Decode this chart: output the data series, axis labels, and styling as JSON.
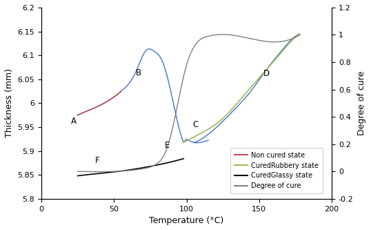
{
  "title": "",
  "xlabel": "Temperature (°C)",
  "ylabel": "Thickness (mm)",
  "ylabel_right": "Degree of cure",
  "xlim": [
    0,
    200
  ],
  "ylim": [
    5.8,
    6.2
  ],
  "ylim_right": [
    -0.2,
    1.2
  ],
  "xticks": [
    0,
    50,
    100,
    150,
    200
  ],
  "yticks_left": [
    5.8,
    5.85,
    5.9,
    5.95,
    6.0,
    6.05,
    6.1,
    6.15,
    6.2
  ],
  "yticks_right": [
    -0.2,
    0,
    0.2,
    0.4,
    0.6,
    0.8,
    1.0,
    1.2
  ],
  "non_cured_color": "#c0504d",
  "cured_rubbery_color": "#9bbb59",
  "cured_glassy_color": "#000000",
  "degree_cure_color": "#7f7f7f",
  "blue_loop_color": "#4472c4",
  "label_A": [
    25,
    5.975
  ],
  "label_B": [
    65,
    6.055
  ],
  "label_C": [
    103,
    5.955
  ],
  "label_D": [
    153,
    6.055
  ],
  "label_E": [
    85,
    5.905
  ],
  "label_F": [
    37,
    5.874
  ],
  "legend_labels": [
    "Non cured state",
    "CuredRubbery state",
    "CuredGlassy state",
    "Degree of cure"
  ]
}
